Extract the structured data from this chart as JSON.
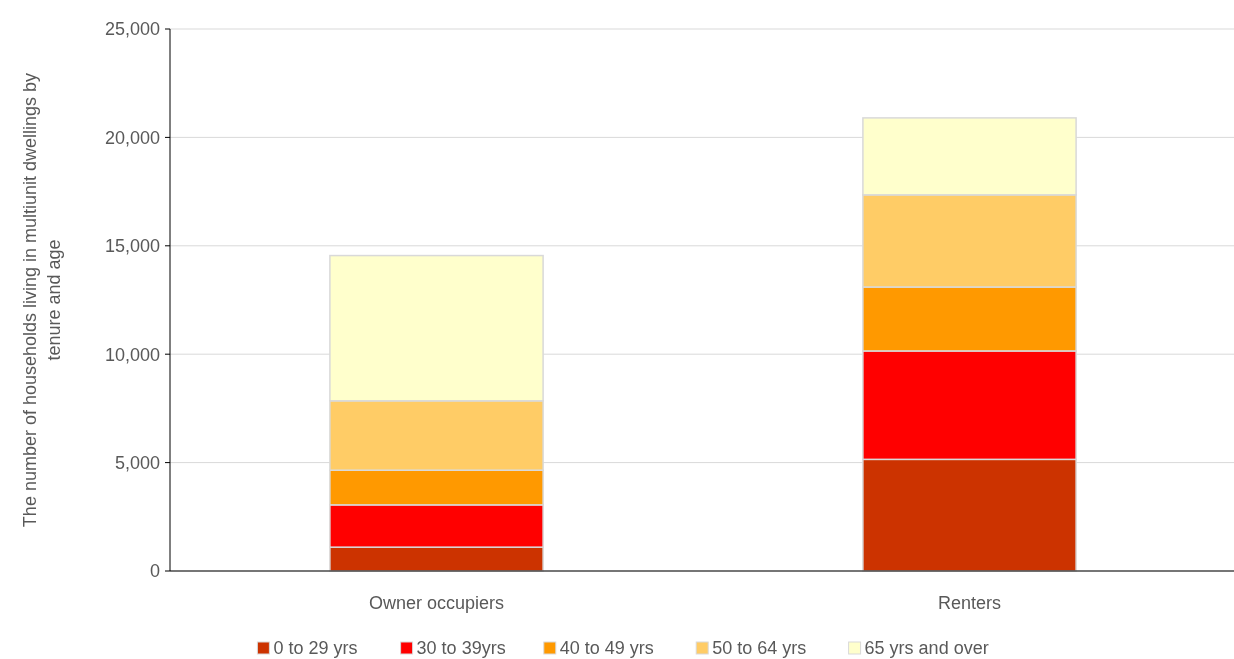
{
  "chart_data": {
    "type": "bar",
    "stacked": true,
    "ylabel": "The number of households living in multiunit dwellings by tenure and age",
    "categories": [
      "Owner occupiers",
      "Renters"
    ],
    "series": [
      {
        "name": "0 to 29 yrs",
        "color": "#cc3300",
        "values": [
          1100,
          5150
        ]
      },
      {
        "name": "30 to 39yrs",
        "color": "#ff0000",
        "values": [
          1950,
          5000
        ]
      },
      {
        "name": "40 to 49 yrs",
        "color": "#ff9900",
        "values": [
          1600,
          2950
        ]
      },
      {
        "name": "50 to 64 yrs",
        "color": "#ffcc66",
        "values": [
          3200,
          4250
        ]
      },
      {
        "name": "65 yrs and over",
        "color": "#ffffcc",
        "values": [
          6700,
          3550
        ]
      }
    ],
    "ylim": [
      0,
      25000
    ],
    "yticks": [
      {
        "value": 0,
        "label": "0"
      },
      {
        "value": 5000,
        "label": "5,000"
      },
      {
        "value": 10000,
        "label": "10,000"
      },
      {
        "value": 15000,
        "label": "15,000"
      },
      {
        "value": 20000,
        "label": "20,000"
      },
      {
        "value": 25000,
        "label": "25,000"
      }
    ],
    "grid": "y",
    "legend": "bottom"
  }
}
